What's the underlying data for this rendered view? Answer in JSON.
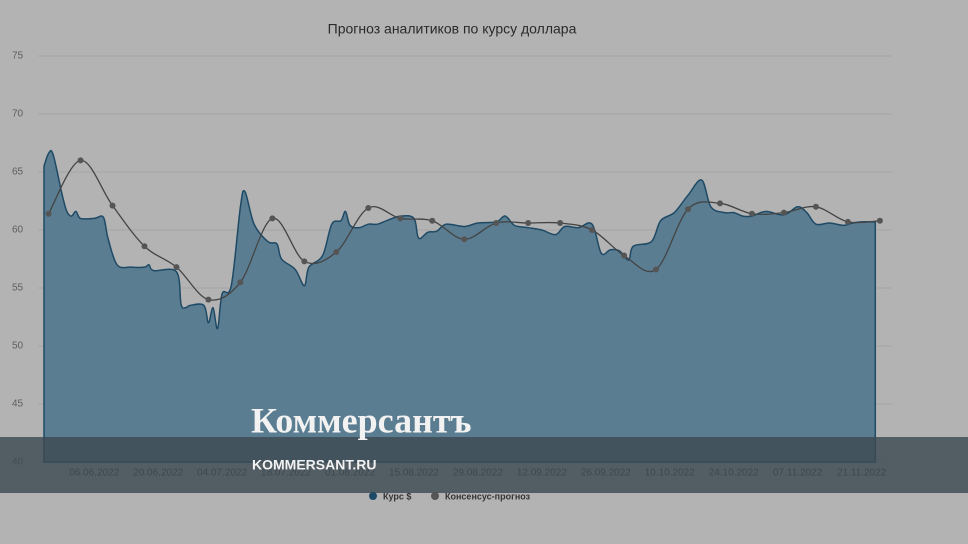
{
  "chart_data": {
    "type": "area-line",
    "title": "Прогноз аналитиков по курсу доллара",
    "xlim": [
      "26.05.2022",
      "27.11.2022"
    ],
    "xticks": [
      "06.06.2022",
      "20.06.2022",
      "04.07.2022",
      "18.07.2022",
      "01.08.2022",
      "15.08.2022",
      "29.08.2022",
      "12.09.2022",
      "26.09.2022",
      "10.10.2022",
      "24.10.2022",
      "07.11.2022",
      "21.11.2022"
    ],
    "ylim": [
      40,
      75
    ],
    "yticks": [
      40,
      45,
      50,
      55,
      60,
      65,
      70,
      75
    ],
    "grid": true,
    "series": [
      {
        "name": "Курс $",
        "color": "#1e4a66",
        "kind": "area",
        "x": [
          "26.05.2022",
          "27.05.2022",
          "28.05.2022",
          "30.05.2022",
          "31.05.2022",
          "01.06.2022",
          "02.06.2022",
          "03.06.2022",
          "06.06.2022",
          "08.06.2022",
          "09.06.2022",
          "11.06.2022",
          "14.06.2022",
          "17.06.2022",
          "18.06.2022",
          "19.06.2022",
          "24.06.2022",
          "25.06.2022",
          "26.06.2022",
          "27.06.2022",
          "30.06.2022",
          "01.07.2022",
          "02.07.2022",
          "03.07.2022",
          "04.07.2022",
          "06.07.2022",
          "08.07.2022",
          "09.07.2022",
          "11.07.2022",
          "14.07.2022",
          "16.07.2022",
          "17.07.2022",
          "20.07.2022",
          "22.07.2022",
          "23.07.2022",
          "26.07.2022",
          "28.07.2022",
          "30.07.2022",
          "31.07.2022",
          "01.08.2022",
          "03.08.2022",
          "05.08.2022",
          "07.08.2022",
          "09.08.2022",
          "12.08.2022",
          "15.08.2022",
          "16.08.2022",
          "18.08.2022",
          "20.08.2022",
          "22.08.2022",
          "26.08.2022",
          "29.08.2022",
          "02.09.2022",
          "04.09.2022",
          "06.09.2022",
          "09.09.2022",
          "12.09.2022",
          "15.09.2022",
          "17.09.2022",
          "20.09.2022",
          "23.09.2022",
          "25.09.2022",
          "27.09.2022",
          "29.09.2022",
          "01.10.2022",
          "02.10.2022",
          "06.10.2022",
          "08.10.2022",
          "11.10.2022",
          "14.10.2022",
          "17.10.2022",
          "19.10.2022",
          "22.10.2022",
          "24.10.2022",
          "26.10.2022",
          "28.10.2022",
          "31.10.2022",
          "04.11.2022",
          "07.11.2022",
          "09.11.2022",
          "11.11.2022",
          "14.11.2022",
          "17.11.2022",
          "19.11.2022",
          "21.11.2022",
          "24.11.2022"
        ],
        "values": [
          65.5,
          66.6,
          66.5,
          63.0,
          61.6,
          61.2,
          61.6,
          61.0,
          61.0,
          61.1,
          59.3,
          57.0,
          56.8,
          56.8,
          57.0,
          56.5,
          56.4,
          53.6,
          53.3,
          53.5,
          53.5,
          52.0,
          53.3,
          51.5,
          54.5,
          55.2,
          62.0,
          63.3,
          60.5,
          59.0,
          58.8,
          57.5,
          56.6,
          55.2,
          56.8,
          57.8,
          60.5,
          60.8,
          61.6,
          60.4,
          60.2,
          60.5,
          60.5,
          60.8,
          61.2,
          61.0,
          59.3,
          59.8,
          59.9,
          60.5,
          60.3,
          60.6,
          60.7,
          61.2,
          60.4,
          60.2,
          60.0,
          59.6,
          60.3,
          60.2,
          60.5,
          58.0,
          58.3,
          58.2,
          57.4,
          58.6,
          59.0,
          60.8,
          61.5,
          63.0,
          64.3,
          62.0,
          61.5,
          61.5,
          61.2,
          61.2,
          61.6,
          61.3,
          62.0,
          61.5,
          60.5,
          60.6,
          60.4,
          60.6,
          60.7,
          60.7
        ]
      },
      {
        "name": "Консенсус-прогноз",
        "color": "#444444",
        "kind": "line",
        "x": [
          "27.05.2022",
          "03.06.2022",
          "10.06.2022",
          "17.06.2022",
          "24.06.2022",
          "01.07.2022",
          "08.07.2022",
          "15.07.2022",
          "22.07.2022",
          "29.07.2022",
          "05.08.2022",
          "12.08.2022",
          "19.08.2022",
          "26.08.2022",
          "02.09.2022",
          "09.09.2022",
          "16.09.2022",
          "23.09.2022",
          "30.09.2022",
          "07.10.2022",
          "14.10.2022",
          "21.10.2022",
          "28.10.2022",
          "04.11.2022",
          "11.11.2022",
          "18.11.2022",
          "25.11.2022"
        ],
        "values": [
          61.4,
          66.0,
          62.1,
          58.6,
          56.8,
          54.0,
          55.5,
          61.0,
          57.3,
          58.1,
          61.9,
          61.0,
          60.8,
          59.2,
          60.6,
          60.6,
          60.6,
          60.0,
          57.8,
          56.6,
          61.8,
          62.3,
          61.4,
          61.5,
          62.0,
          60.7,
          60.8
        ]
      }
    ]
  },
  "watermark": {
    "logo": "Коммерсантъ",
    "site": "KOMMERSANT.RU"
  }
}
